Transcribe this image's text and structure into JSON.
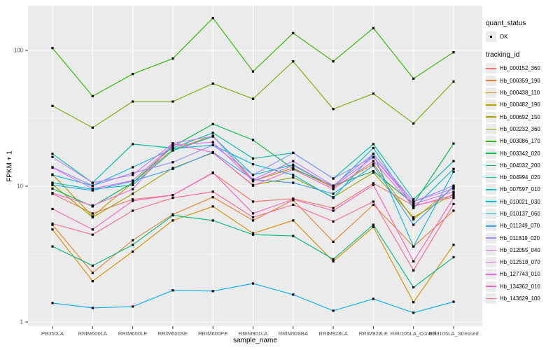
{
  "figure": {
    "panel_bg": "#EBEBEB",
    "grid_color": "#FFFFFF",
    "tick_color": "#333333",
    "tick_label_color": "#4D4D4D",
    "point_color": "#000000"
  },
  "legend": {
    "quant_title": "quant_status",
    "quant_ok_label": "OK",
    "tracking_title": "tracking_id"
  },
  "chart_data": {
    "type": "line",
    "title": "",
    "xlabel": "sample_name",
    "ylabel": "FPKM + 1",
    "yscale": "log10",
    "ytick_labels": [
      "1",
      "10",
      "100"
    ],
    "yticks": [
      1,
      10,
      100
    ],
    "minor_gridlines": [
      3.162,
      31.62
    ],
    "ylim": [
      0.93,
      215
    ],
    "grid": true,
    "legend_position": "right",
    "marker": "black-square",
    "categories": [
      "PB350LA",
      "RRIM600LA",
      "RRIM600LE",
      "RRIM600SE",
      "RRIM600PE",
      "RRIM901LA",
      "RRIM928BA",
      "RRIM928LA",
      "RRIM928LE",
      "RRII105LA_Control",
      "RRII105LA_Stressed"
    ],
    "series": [
      {
        "name": "Hb_000152_360",
        "color": "#F8766D",
        "values": [
          8.8,
          6.3,
          8.0,
          8.6,
          12.5,
          7.7,
          8.1,
          6.9,
          10.5,
          7.2,
          8.3
        ]
      },
      {
        "name": "Hb_000359_190",
        "color": "#EA8331",
        "values": [
          5.2,
          2.3,
          4.0,
          6.2,
          8.3,
          5.6,
          7.9,
          3.9,
          7.3,
          3.6,
          6.6
        ]
      },
      {
        "name": "Hb_000438_110",
        "color": "#D89000",
        "values": [
          4.8,
          2.0,
          3.3,
          5.6,
          7.1,
          4.5,
          5.6,
          2.8,
          5.0,
          1.4,
          3.7
        ]
      },
      {
        "name": "Hb_000482_190",
        "color": "#C09B00",
        "values": [
          12.2,
          6.0,
          10.6,
          18.6,
          23.5,
          10.9,
          13.6,
          9.8,
          14.6,
          5.7,
          9.8
        ]
      },
      {
        "name": "Hb_000692_150",
        "color": "#A3A500",
        "values": [
          10.3,
          5.9,
          8.8,
          13.6,
          17.6,
          10.2,
          11.6,
          8.3,
          12.6,
          5.9,
          8.8
        ]
      },
      {
        "name": "Hb_002232_360",
        "color": "#7CAE00",
        "values": [
          39,
          27,
          42,
          42,
          57,
          44,
          83,
          37,
          48,
          29,
          59
        ]
      },
      {
        "name": "Hb_003086_170",
        "color": "#39B600",
        "values": [
          104,
          46,
          67,
          87,
          173,
          70,
          134,
          83,
          146,
          62,
          97
        ]
      },
      {
        "name": "Hb_003342_020",
        "color": "#00BB4E",
        "values": [
          9.6,
          7.1,
          10.6,
          19.6,
          28.7,
          21.9,
          13.4,
          10.1,
          12.9,
          7.4,
          20.6
        ]
      },
      {
        "name": "Hb_004032_200",
        "color": "#00BF7D",
        "values": [
          3.6,
          2.6,
          3.7,
          6.1,
          5.6,
          4.4,
          4.3,
          2.9,
          5.2,
          1.8,
          3.0
        ]
      },
      {
        "name": "Hb_004994_020",
        "color": "#00C1A3",
        "values": [
          17.3,
          10.6,
          20.4,
          19.1,
          24.7,
          16.0,
          17.6,
          11.4,
          20.4,
          8.0,
          15.3
        ]
      },
      {
        "name": "Hb_007597_010",
        "color": "#00BFC4",
        "values": [
          10.6,
          9.5,
          10.2,
          18.3,
          23.2,
          12.1,
          14.4,
          9.9,
          19.1,
          6.9,
          13.4
        ]
      },
      {
        "name": "Hb_010021_030",
        "color": "#00BAE0",
        "values": [
          12.1,
          10.1,
          13.8,
          18.9,
          20.1,
          14.5,
          12.1,
          8.2,
          17.3,
          3.6,
          12.8
        ]
      },
      {
        "name": "Hb_010137_060",
        "color": "#00B0F6",
        "values": [
          1.38,
          1.27,
          1.3,
          1.71,
          1.69,
          1.92,
          1.59,
          1.21,
          1.48,
          1.17,
          1.41
        ]
      },
      {
        "name": "Hb_011249_070",
        "color": "#35A2FF",
        "values": [
          10.2,
          9.3,
          10.9,
          13.4,
          17.8,
          11.2,
          10.6,
          8.8,
          14.2,
          5.2,
          10.0
        ]
      },
      {
        "name": "Hb_011819_020",
        "color": "#9590FF",
        "values": [
          13.8,
          10.1,
          12.5,
          15.0,
          20.1,
          12.1,
          17.6,
          11.4,
          16.4,
          7.7,
          10.1
        ]
      },
      {
        "name": "Hb_012055_040",
        "color": "#C77CFF",
        "values": [
          16.4,
          10.6,
          12.1,
          20.7,
          23.3,
          11.2,
          15.3,
          10.1,
          17.3,
          7.7,
          9.6
        ]
      },
      {
        "name": "Hb_012518_070",
        "color": "#E76BF3",
        "values": [
          13.7,
          9.6,
          11.0,
          20.1,
          21.1,
          10.9,
          14.2,
          9.9,
          16.3,
          7.4,
          9.1
        ]
      },
      {
        "name": "Hb_127743_010",
        "color": "#FA62DB",
        "values": [
          8.9,
          7.2,
          9.5,
          20.6,
          17.7,
          10.1,
          13.3,
          9.5,
          15.3,
          7.1,
          8.6
        ]
      },
      {
        "name": "Hb_134362_010",
        "color": "#FF62BC",
        "values": [
          6.8,
          4.8,
          7.8,
          8.6,
          12.6,
          6.3,
          8.0,
          6.6,
          10.2,
          2.8,
          8.2
        ]
      },
      {
        "name": "Hb_143629_100",
        "color": "#FF6A98",
        "values": [
          5.3,
          4.4,
          6.6,
          8.2,
          9.1,
          5.9,
          7.3,
          5.5,
          7.7,
          2.4,
          7.4
        ]
      }
    ]
  }
}
